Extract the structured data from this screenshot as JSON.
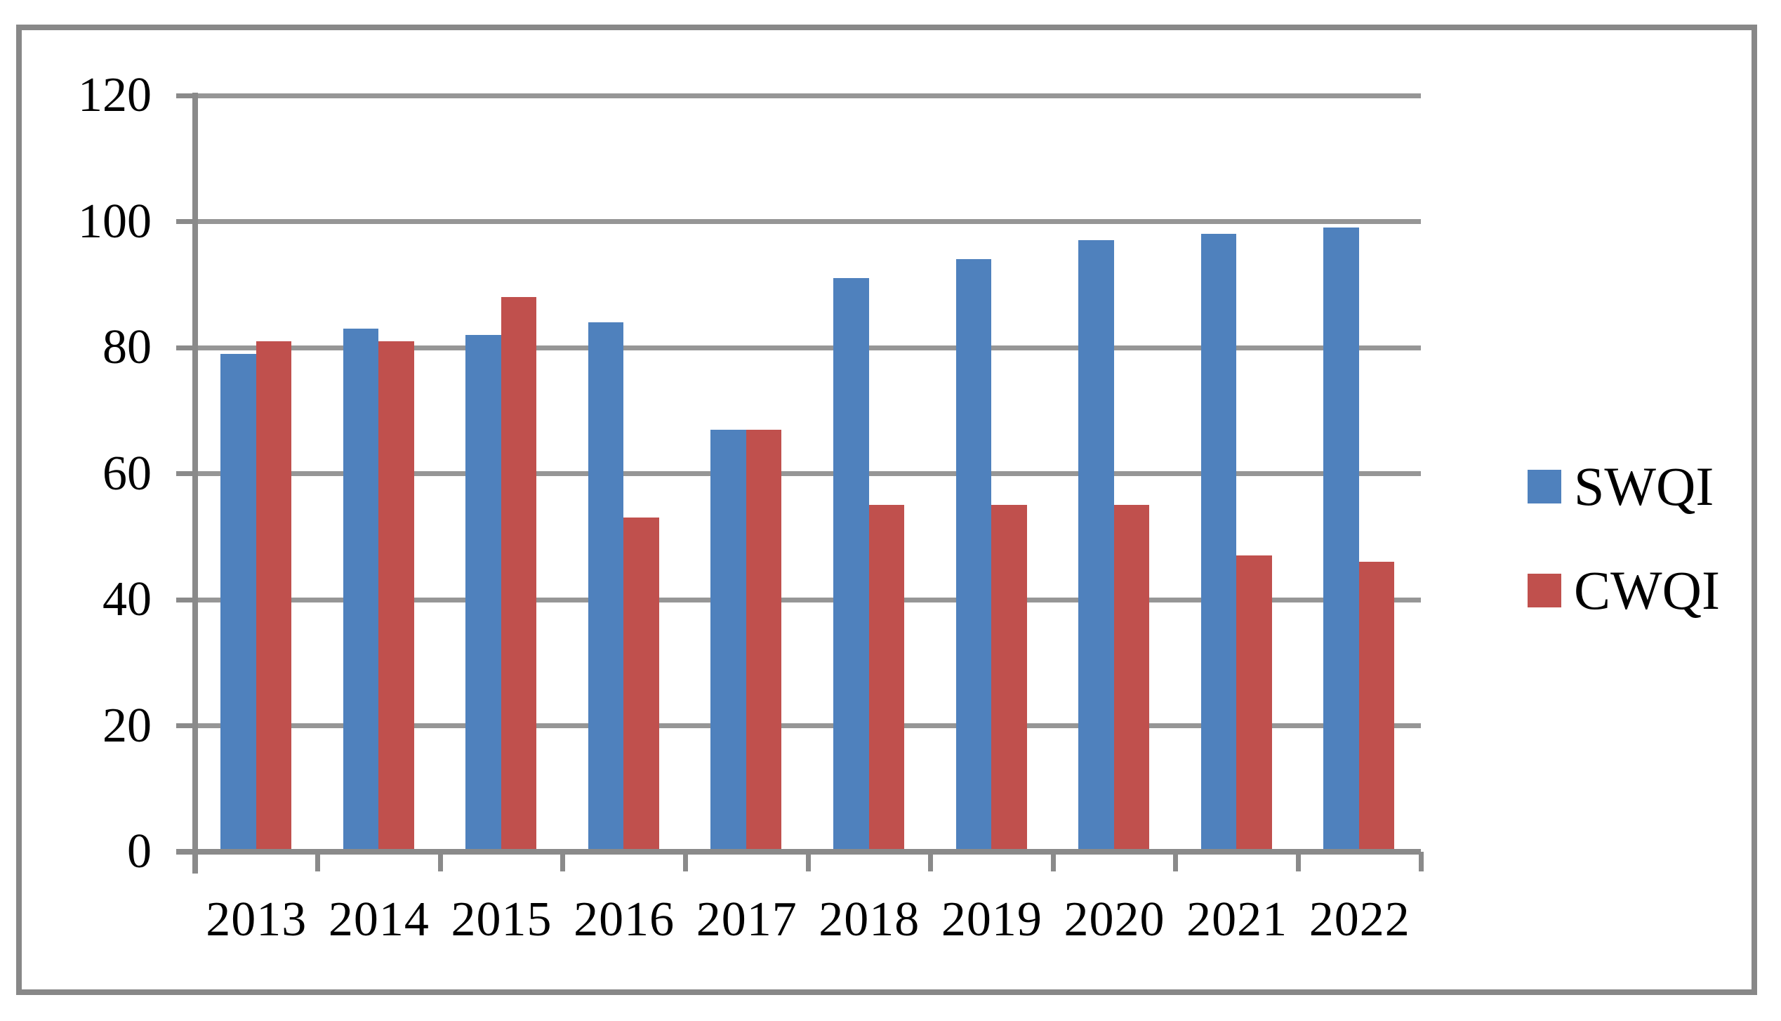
{
  "figure": {
    "background": "#ffffff",
    "border_color": "#888888"
  },
  "chart_data": {
    "type": "bar",
    "title": "",
    "xlabel": "",
    "ylabel": "",
    "categories": [
      "2013",
      "2014",
      "2015",
      "2016",
      "2017",
      "2018",
      "2019",
      "2020",
      "2021",
      "2022"
    ],
    "series": [
      {
        "name": "SWQI",
        "color": "#4F81BD",
        "values": [
          79,
          83,
          82,
          84,
          67,
          91,
          94,
          97,
          98,
          99
        ]
      },
      {
        "name": "CWQI",
        "color": "#C0504D",
        "values": [
          81,
          81,
          88,
          53,
          67,
          55,
          55,
          55,
          47,
          46
        ]
      }
    ],
    "ylim": [
      0,
      120
    ],
    "yticks": [
      0,
      20,
      40,
      60,
      80,
      100,
      120
    ],
    "grid": "horizontal",
    "gridline_color": "#969696",
    "axis_color": "#8a8a8a",
    "legend_position": "right"
  }
}
